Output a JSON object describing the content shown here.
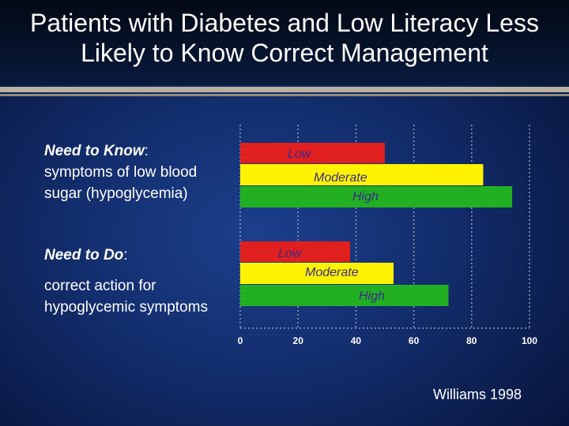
{
  "slide": {
    "title_line1": "Patients with Diabetes and Low Literacy Less",
    "title_line2": "Likely to Know Correct Management",
    "credit": "Williams 1998"
  },
  "questions": [
    {
      "heading": "Need to Know",
      "colon": ":",
      "description_line1": "symptoms of low blood",
      "description_line2": "sugar (hypoglycemia)"
    },
    {
      "heading": "Need to Do",
      "colon": ":",
      "description_line1": "correct action for",
      "description_line2": "hypoglycemic symptoms"
    }
  ],
  "chart_data": {
    "type": "bar",
    "orientation": "horizontal",
    "categories": [
      "Need to Know",
      "Need to Do"
    ],
    "series": [
      {
        "name": "Low",
        "color": "#e01f1f",
        "values": [
          50,
          38
        ]
      },
      {
        "name": "Moderate",
        "color": "#fff200",
        "values": [
          84,
          53
        ]
      },
      {
        "name": "High",
        "color": "#22b022",
        "values": [
          94,
          72
        ]
      }
    ],
    "xlim": [
      0,
      100
    ],
    "xticks": [
      0,
      20,
      40,
      60,
      80,
      100
    ],
    "grid": true,
    "title": "",
    "xlabel": "",
    "ylabel": ""
  }
}
